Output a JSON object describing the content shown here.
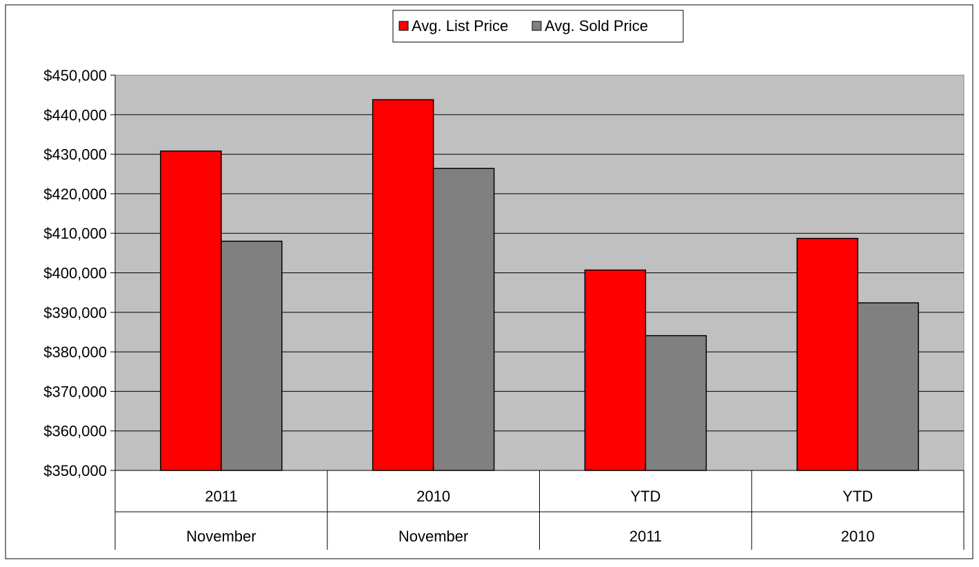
{
  "chart_data": {
    "type": "bar",
    "categories": [
      {
        "line1": "2011",
        "line2": "November"
      },
      {
        "line1": "2010",
        "line2": "November"
      },
      {
        "line1": "YTD",
        "line2": "2011"
      },
      {
        "line1": "YTD",
        "line2": "2010"
      }
    ],
    "series": [
      {
        "name": "Avg. List Price",
        "color": "#ff0000",
        "values": [
          430800,
          443800,
          400700,
          408700
        ]
      },
      {
        "name": "Avg. Sold Price",
        "color": "#808080",
        "values": [
          408000,
          426400,
          384100,
          392400
        ]
      }
    ],
    "ylim": [
      350000,
      450000
    ],
    "yticks": [
      "$350,000",
      "$360,000",
      "$370,000",
      "$380,000",
      "$390,000",
      "$400,000",
      "$410,000",
      "$420,000",
      "$430,000",
      "$440,000",
      "$450,000"
    ],
    "plot_background": "#c0c0c0",
    "grid": true,
    "legend_position": "top-center"
  }
}
